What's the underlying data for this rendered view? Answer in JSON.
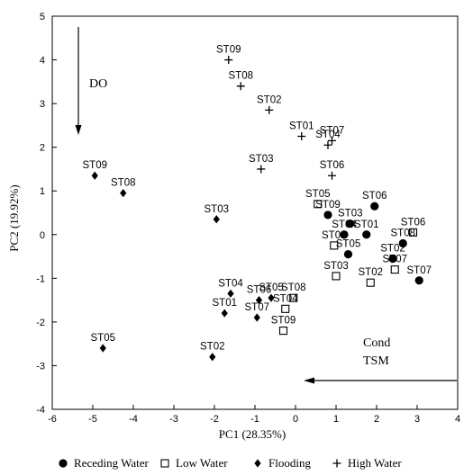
{
  "chart_data": {
    "type": "scatter",
    "xlabel": "PC1 (28.35%)",
    "ylabel": "PC2 (19.92%)",
    "xlim": [
      -6,
      4
    ],
    "ylim": [
      -4,
      5
    ],
    "xticks": [
      -6,
      -5,
      -4,
      -3,
      -2,
      -1,
      0,
      1,
      2,
      3,
      4
    ],
    "yticks": [
      -4,
      -3,
      -2,
      -1,
      0,
      1,
      2,
      3,
      4,
      5
    ],
    "grid": false,
    "legend_position": "bottom",
    "annotations": [
      {
        "text": "DO",
        "arrow": "down"
      },
      {
        "text": "Cond",
        "arrow": "left"
      },
      {
        "text": "TSM",
        "arrow": "left"
      }
    ],
    "series": [
      {
        "name": "Receding Water",
        "marker": "filled-circle",
        "points": [
          {
            "label": "ST09",
            "x": 0.8,
            "y": 0.45
          },
          {
            "label": "ST06",
            "x": 1.95,
            "y": 0.65
          },
          {
            "label": "ST03",
            "x": 1.35,
            "y": 0.25
          },
          {
            "label": "ST01",
            "x": 1.75,
            "y": 0.0
          },
          {
            "label": "ST04",
            "x": 1.2,
            "y": 0.0
          },
          {
            "label": "ST05",
            "x": 1.3,
            "y": -0.45
          },
          {
            "label": "ST08",
            "x": 2.65,
            "y": -0.2
          },
          {
            "label": "ST02",
            "x": 2.4,
            "y": -0.55
          },
          {
            "label": "ST07",
            "x": 3.05,
            "y": -1.05
          }
        ]
      },
      {
        "name": "Low Water",
        "marker": "open-square",
        "points": [
          {
            "label": "ST05",
            "x": 0.55,
            "y": 0.7
          },
          {
            "label": "ST06",
            "x": 2.9,
            "y": 0.05
          },
          {
            "label": "ST01",
            "x": 0.95,
            "y": -0.25
          },
          {
            "label": "ST03",
            "x": 1.0,
            "y": -0.95
          },
          {
            "label": "ST02",
            "x": 1.85,
            "y": -1.1
          },
          {
            "label": "ST07",
            "x": 2.45,
            "y": -0.8
          },
          {
            "label": "ST08",
            "x": -0.05,
            "y": -1.45
          },
          {
            "label": "ST04",
            "x": -0.25,
            "y": -1.7
          },
          {
            "label": "ST09",
            "x": -0.3,
            "y": -2.2
          }
        ]
      },
      {
        "name": "Flooding",
        "marker": "filled-diamond",
        "points": [
          {
            "label": "ST09",
            "x": -4.95,
            "y": 1.35
          },
          {
            "label": "ST08",
            "x": -4.25,
            "y": 0.95
          },
          {
            "label": "ST03",
            "x": -1.95,
            "y": 0.35
          },
          {
            "label": "ST04",
            "x": -1.6,
            "y": -1.35
          },
          {
            "label": "ST06",
            "x": -0.9,
            "y": -1.5
          },
          {
            "label": "ST05",
            "x": -0.6,
            "y": -1.45
          },
          {
            "label": "ST01",
            "x": -1.75,
            "y": -1.8
          },
          {
            "label": "ST07",
            "x": -0.95,
            "y": -1.9
          },
          {
            "label": "ST02",
            "x": -2.05,
            "y": -2.8
          },
          {
            "label": "ST05",
            "x": -4.75,
            "y": -2.6
          }
        ]
      },
      {
        "name": "High Water",
        "marker": "plus",
        "points": [
          {
            "label": "ST09",
            "x": -1.65,
            "y": 4.0
          },
          {
            "label": "ST08",
            "x": -1.35,
            "y": 3.4
          },
          {
            "label": "ST02",
            "x": -0.65,
            "y": 2.85
          },
          {
            "label": "ST01",
            "x": 0.15,
            "y": 2.25
          },
          {
            "label": "ST07",
            "x": 0.9,
            "y": 2.15
          },
          {
            "label": "ST04",
            "x": 0.8,
            "y": 2.05
          },
          {
            "label": "ST03",
            "x": -0.85,
            "y": 1.5
          },
          {
            "label": "ST06",
            "x": 0.9,
            "y": 1.35
          }
        ]
      }
    ]
  }
}
